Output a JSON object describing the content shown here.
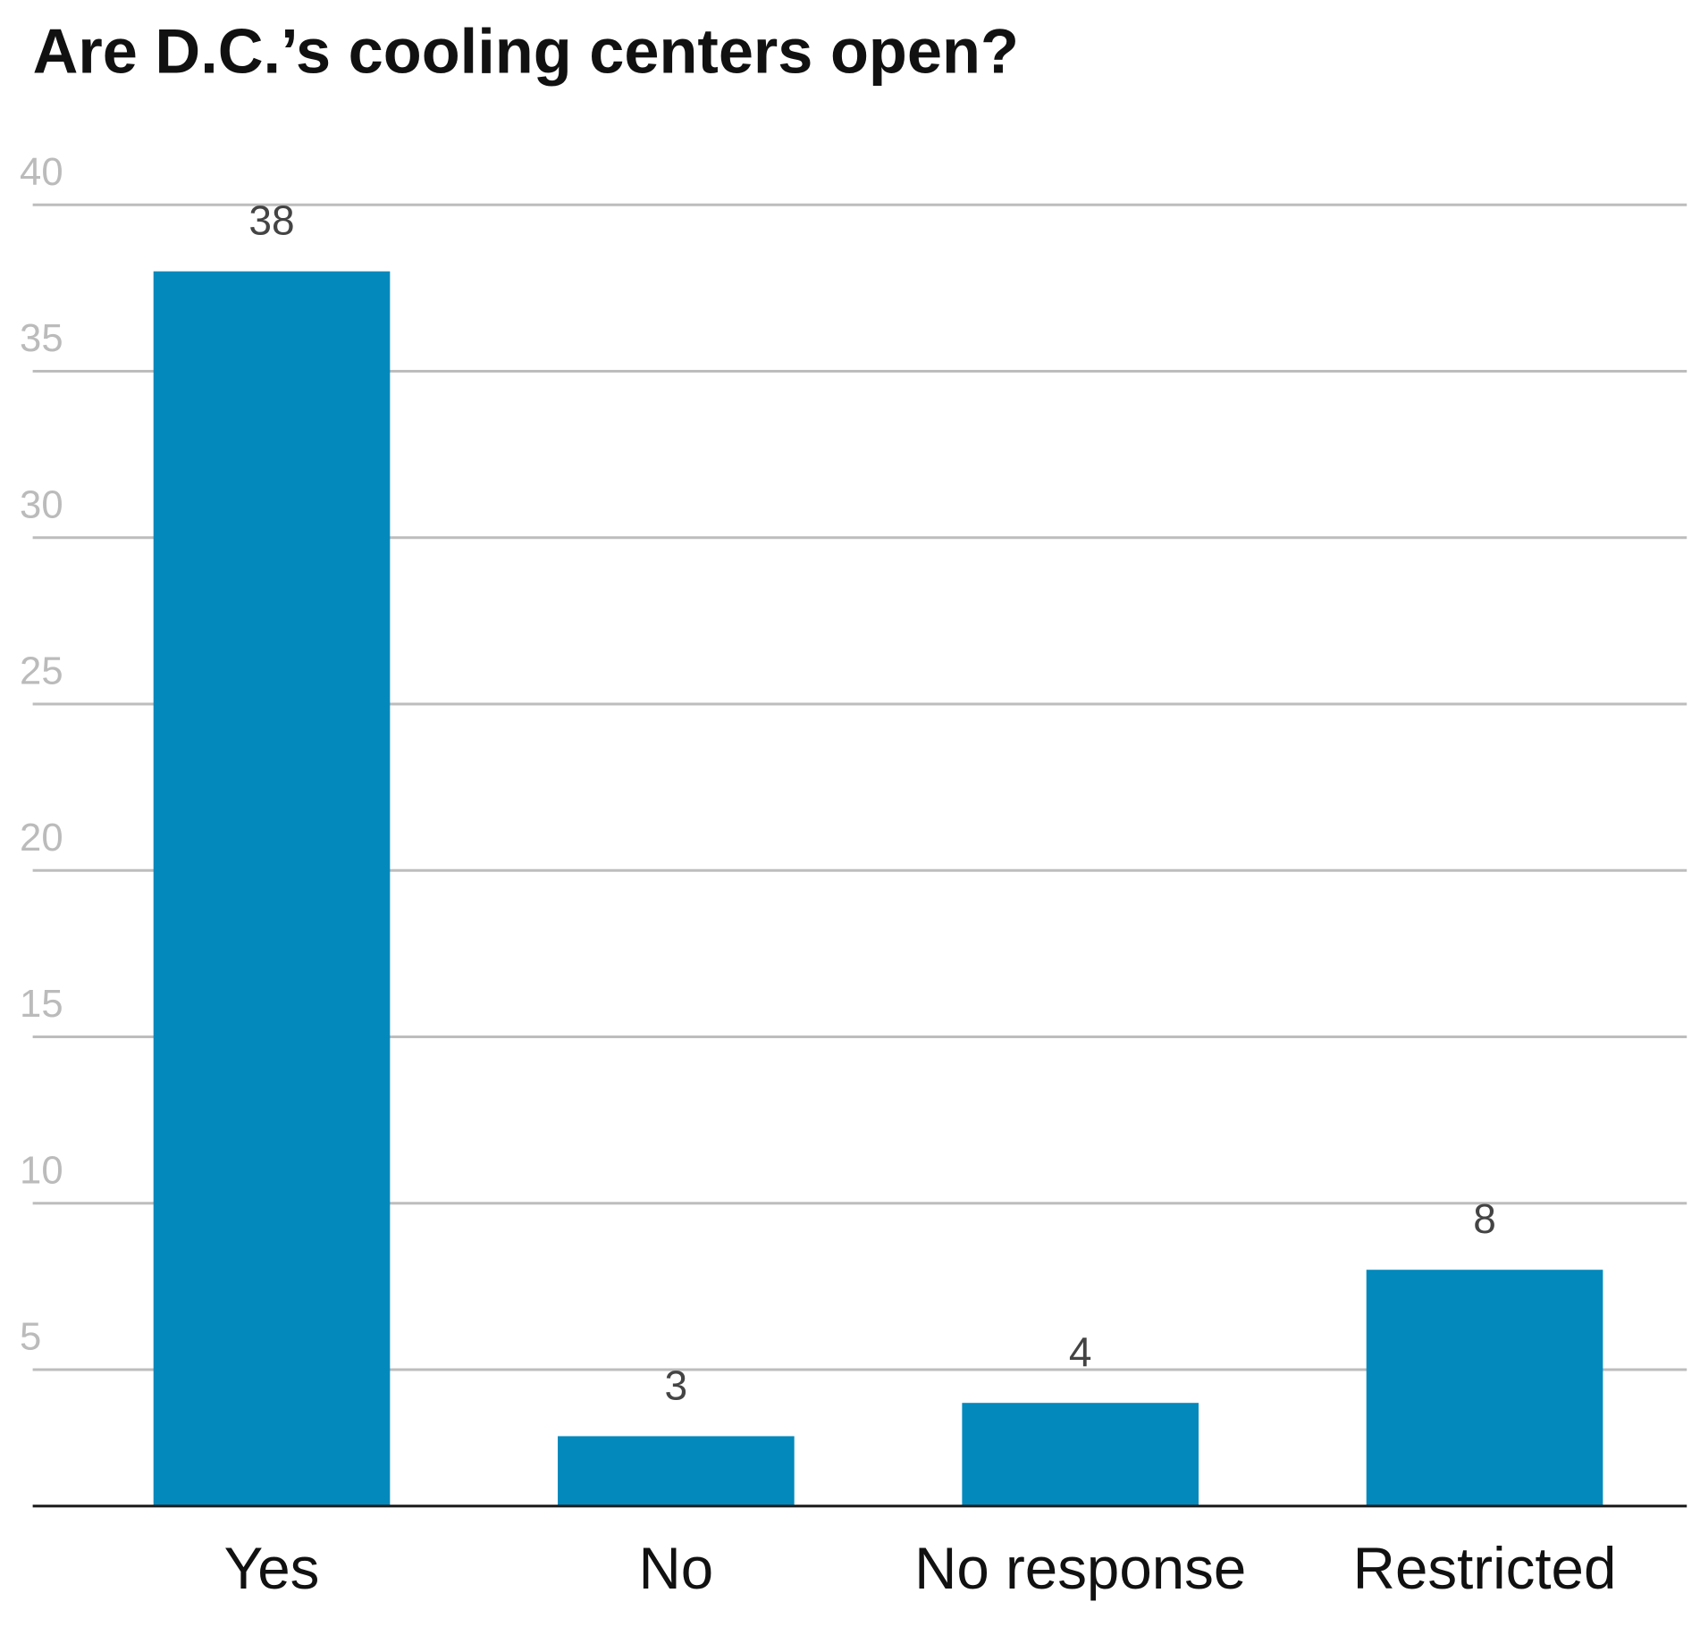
{
  "chart_data": {
    "type": "bar",
    "title": "Are D.C.’s cooling centers open?",
    "categories": [
      "Yes",
      "No",
      "No response",
      "Restricted"
    ],
    "values": [
      38,
      3,
      4,
      8
    ],
    "color": "#0389bc",
    "ylim": [
      0.9,
      40
    ],
    "yticks": [
      5,
      10,
      15,
      20,
      25,
      30,
      35,
      40
    ],
    "grid": true
  }
}
